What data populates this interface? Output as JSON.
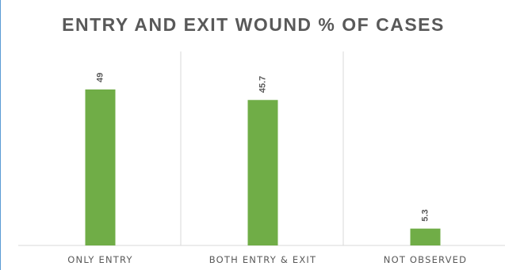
{
  "chart_data": {
    "type": "bar",
    "title": "ENTRY AND EXIT WOUND % OF CASES",
    "categories": [
      "ONLY ENTRY",
      "BOTH ENTRY  & EXIT",
      "NOT OBSERVED"
    ],
    "values": [
      49,
      45.7,
      5.3
    ],
    "data_labels": [
      "49",
      "45.7",
      "5.3"
    ],
    "xlabel": "",
    "ylabel": "",
    "ylim": [
      0,
      55
    ],
    "grid": false,
    "legend": "none",
    "bar_color": "#70ad47",
    "frame_color": "#5b9bd5"
  }
}
